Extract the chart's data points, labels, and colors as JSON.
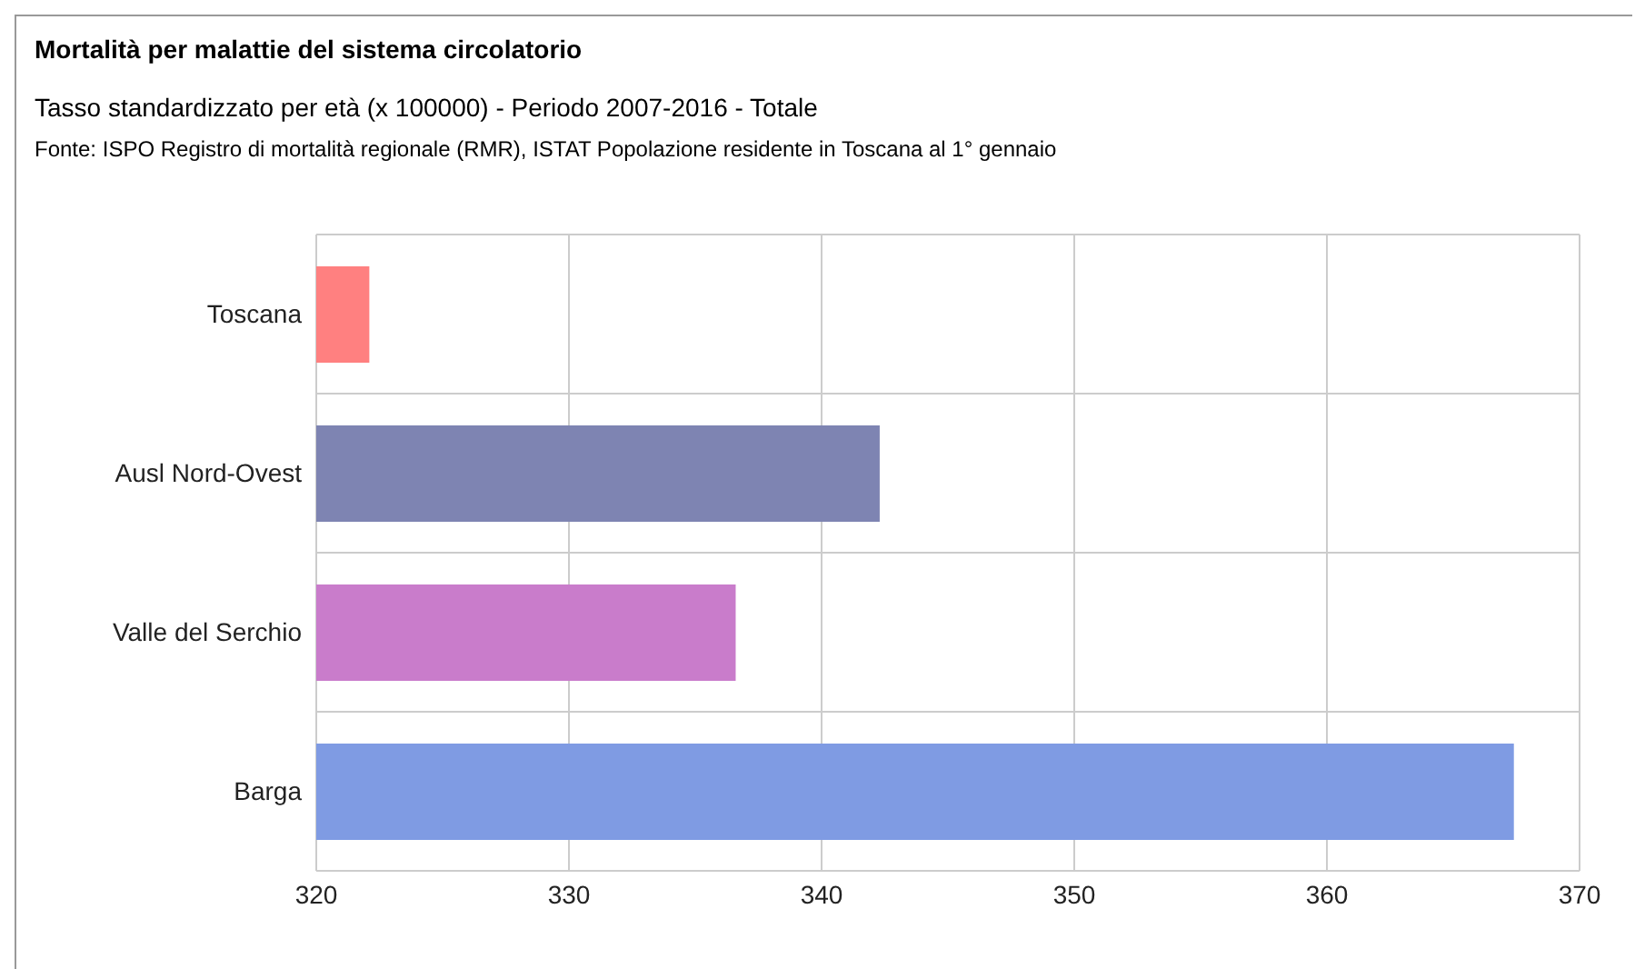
{
  "chart_data": {
    "type": "bar",
    "orientation": "horizontal",
    "title": "Mortalità per malattie del sistema circolatorio",
    "subtitle": "Tasso standardizzato per età (x 100000) - Periodo 2007-2016 - Totale",
    "annotations": [
      "Fonte: ISPO Registro di mortalità regionale (RMR), ISTAT Popolazione residente in Toscana al 1° gennaio"
    ],
    "categories": [
      "Toscana",
      "Ausl Nord-Ovest",
      "Valle del Serchio",
      "Barga"
    ],
    "values": [
      322.1,
      342.3,
      336.6,
      367.4
    ],
    "colors": [
      "#ff8080",
      "#7e84b2",
      "#c97ccb",
      "#7f9be3"
    ],
    "xlim": [
      320,
      370
    ],
    "xticks": [
      320,
      330,
      340,
      350,
      360,
      370
    ],
    "grid": true
  }
}
